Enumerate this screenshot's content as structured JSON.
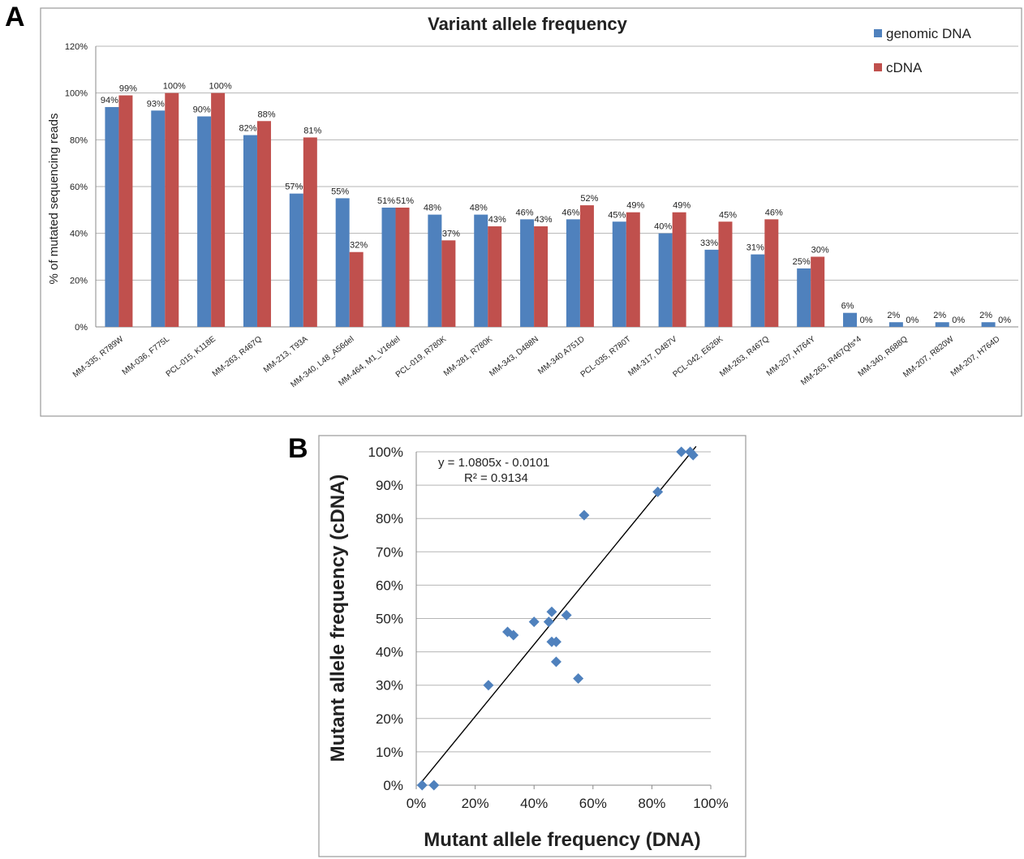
{
  "panels": {
    "a_letter": "A",
    "b_letter": "B"
  },
  "chart_data": [
    {
      "type": "bar",
      "title": "Variant allele frequency",
      "ylabel": "% of mutated sequencing reads",
      "xlabel": "",
      "ylim": [
        0,
        120
      ],
      "yticks": [
        "0%",
        "20%",
        "40%",
        "60%",
        "80%",
        "100%",
        "120%"
      ],
      "grid": true,
      "legend_position": "top-right",
      "categories": [
        "MM-335, R789W",
        "MM-036, F775L",
        "PCL-015, K118E",
        "MM-263, R467Q",
        "MM-213, T93A",
        "MM-340, L48_A56del",
        "MM-464, M1_V16del",
        "PCL-019, R780K",
        "MM-281, R780K",
        "MM-343, D488N",
        "MM-340 A751D",
        "PCL-035, R780T",
        "MM-317, D487V",
        "PCL-042, E626K",
        "MM-263, R467Q",
        "MM-207, H764Y",
        "MM-263, R467Qfs*4",
        "MM-340, R688Q",
        "MM-207, R820W",
        "MM-207, H764D"
      ],
      "series": [
        {
          "name": "genomic DNA",
          "color": "#4F81BD",
          "values": [
            94,
            92.5,
            90,
            82,
            57,
            55,
            51,
            48,
            48,
            46,
            46,
            45,
            40,
            33,
            31,
            25,
            6,
            2,
            2,
            2
          ],
          "labels": [
            "94%",
            "93%",
            "90%",
            "82%",
            "57%",
            "55%",
            "51%",
            "48%",
            "48%",
            "46%",
            "46%",
            "45%",
            "40%",
            "33%",
            "31%",
            "25%",
            "6%",
            "2%",
            "2%",
            "2%"
          ]
        },
        {
          "name": "cDNA",
          "color": "#C0504D",
          "values": [
            99,
            100,
            100,
            88,
            81,
            32,
            51,
            37,
            43,
            43,
            52,
            49,
            49,
            45,
            46,
            30,
            0,
            0,
            0,
            0
          ],
          "labels": [
            "99%",
            "100%",
            "100%",
            "88%",
            "81%",
            "32%",
            "51%",
            "37%",
            "43%",
            "43%",
            "52%",
            "49%",
            "49%",
            "45%",
            "46%",
            "30%",
            "0%",
            "0%",
            "0%",
            "0%"
          ]
        }
      ]
    },
    {
      "type": "scatter",
      "xlabel": "Mutant allele frequency (DNA)",
      "ylabel": "Mutant allele frequency (cDNA)",
      "xlim": [
        0,
        100
      ],
      "ylim": [
        0,
        100
      ],
      "xticks": [
        "0%",
        "20%",
        "40%",
        "60%",
        "80%",
        "100%"
      ],
      "yticks": [
        "0%",
        "10%",
        "20%",
        "30%",
        "40%",
        "50%",
        "60%",
        "70%",
        "80%",
        "90%",
        "100%"
      ],
      "grid": true,
      "point_color": "#4F81BD",
      "equation": "y = 1.0805x - 0.0101",
      "r_squared": "R² = 0.9134",
      "trendline": {
        "slope": 1.0805,
        "intercept": -0.0101
      },
      "points": [
        [
          2,
          0
        ],
        [
          6,
          0
        ],
        [
          24.5,
          30
        ],
        [
          31,
          46
        ],
        [
          33,
          45
        ],
        [
          40,
          49
        ],
        [
          45,
          49
        ],
        [
          46,
          52
        ],
        [
          46,
          43
        ],
        [
          47.5,
          43
        ],
        [
          47.5,
          37
        ],
        [
          51,
          51
        ],
        [
          55,
          32
        ],
        [
          57,
          81
        ],
        [
          82,
          88
        ],
        [
          90,
          100
        ],
        [
          93,
          100
        ],
        [
          94,
          99
        ]
      ]
    }
  ]
}
